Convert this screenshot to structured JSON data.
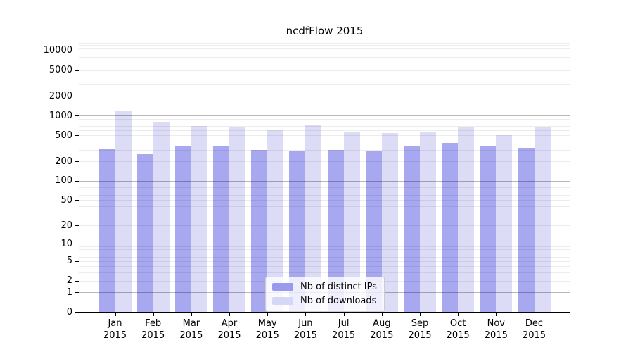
{
  "chart_data": {
    "type": "bar",
    "title": "ncdfFlow 2015",
    "categories": [
      "Jan",
      "Feb",
      "Mar",
      "Apr",
      "May",
      "Jun",
      "Jul",
      "Aug",
      "Sep",
      "Oct",
      "Nov",
      "Dec"
    ],
    "category_year": "2015",
    "series": [
      {
        "name": "Nb of distinct IPs",
        "color": "#9999ee",
        "values": [
          305,
          260,
          350,
          335,
          300,
          285,
          300,
          285,
          335,
          380,
          335,
          320
        ]
      },
      {
        "name": "Nb of downloads",
        "color": "#d6d6f6",
        "values": [
          1200,
          795,
          695,
          665,
          610,
          735,
          555,
          540,
          560,
          680,
          505,
          680
        ]
      }
    ],
    "yscale": "log10(value+1)",
    "yticks": [
      0,
      1,
      2,
      5,
      10,
      20,
      50,
      100,
      200,
      500,
      1000,
      2000,
      5000,
      10000
    ],
    "ylim": [
      0,
      13300
    ],
    "xlabel": "",
    "ylabel": "",
    "grid": "horizontal",
    "legend_position": "lower center"
  }
}
